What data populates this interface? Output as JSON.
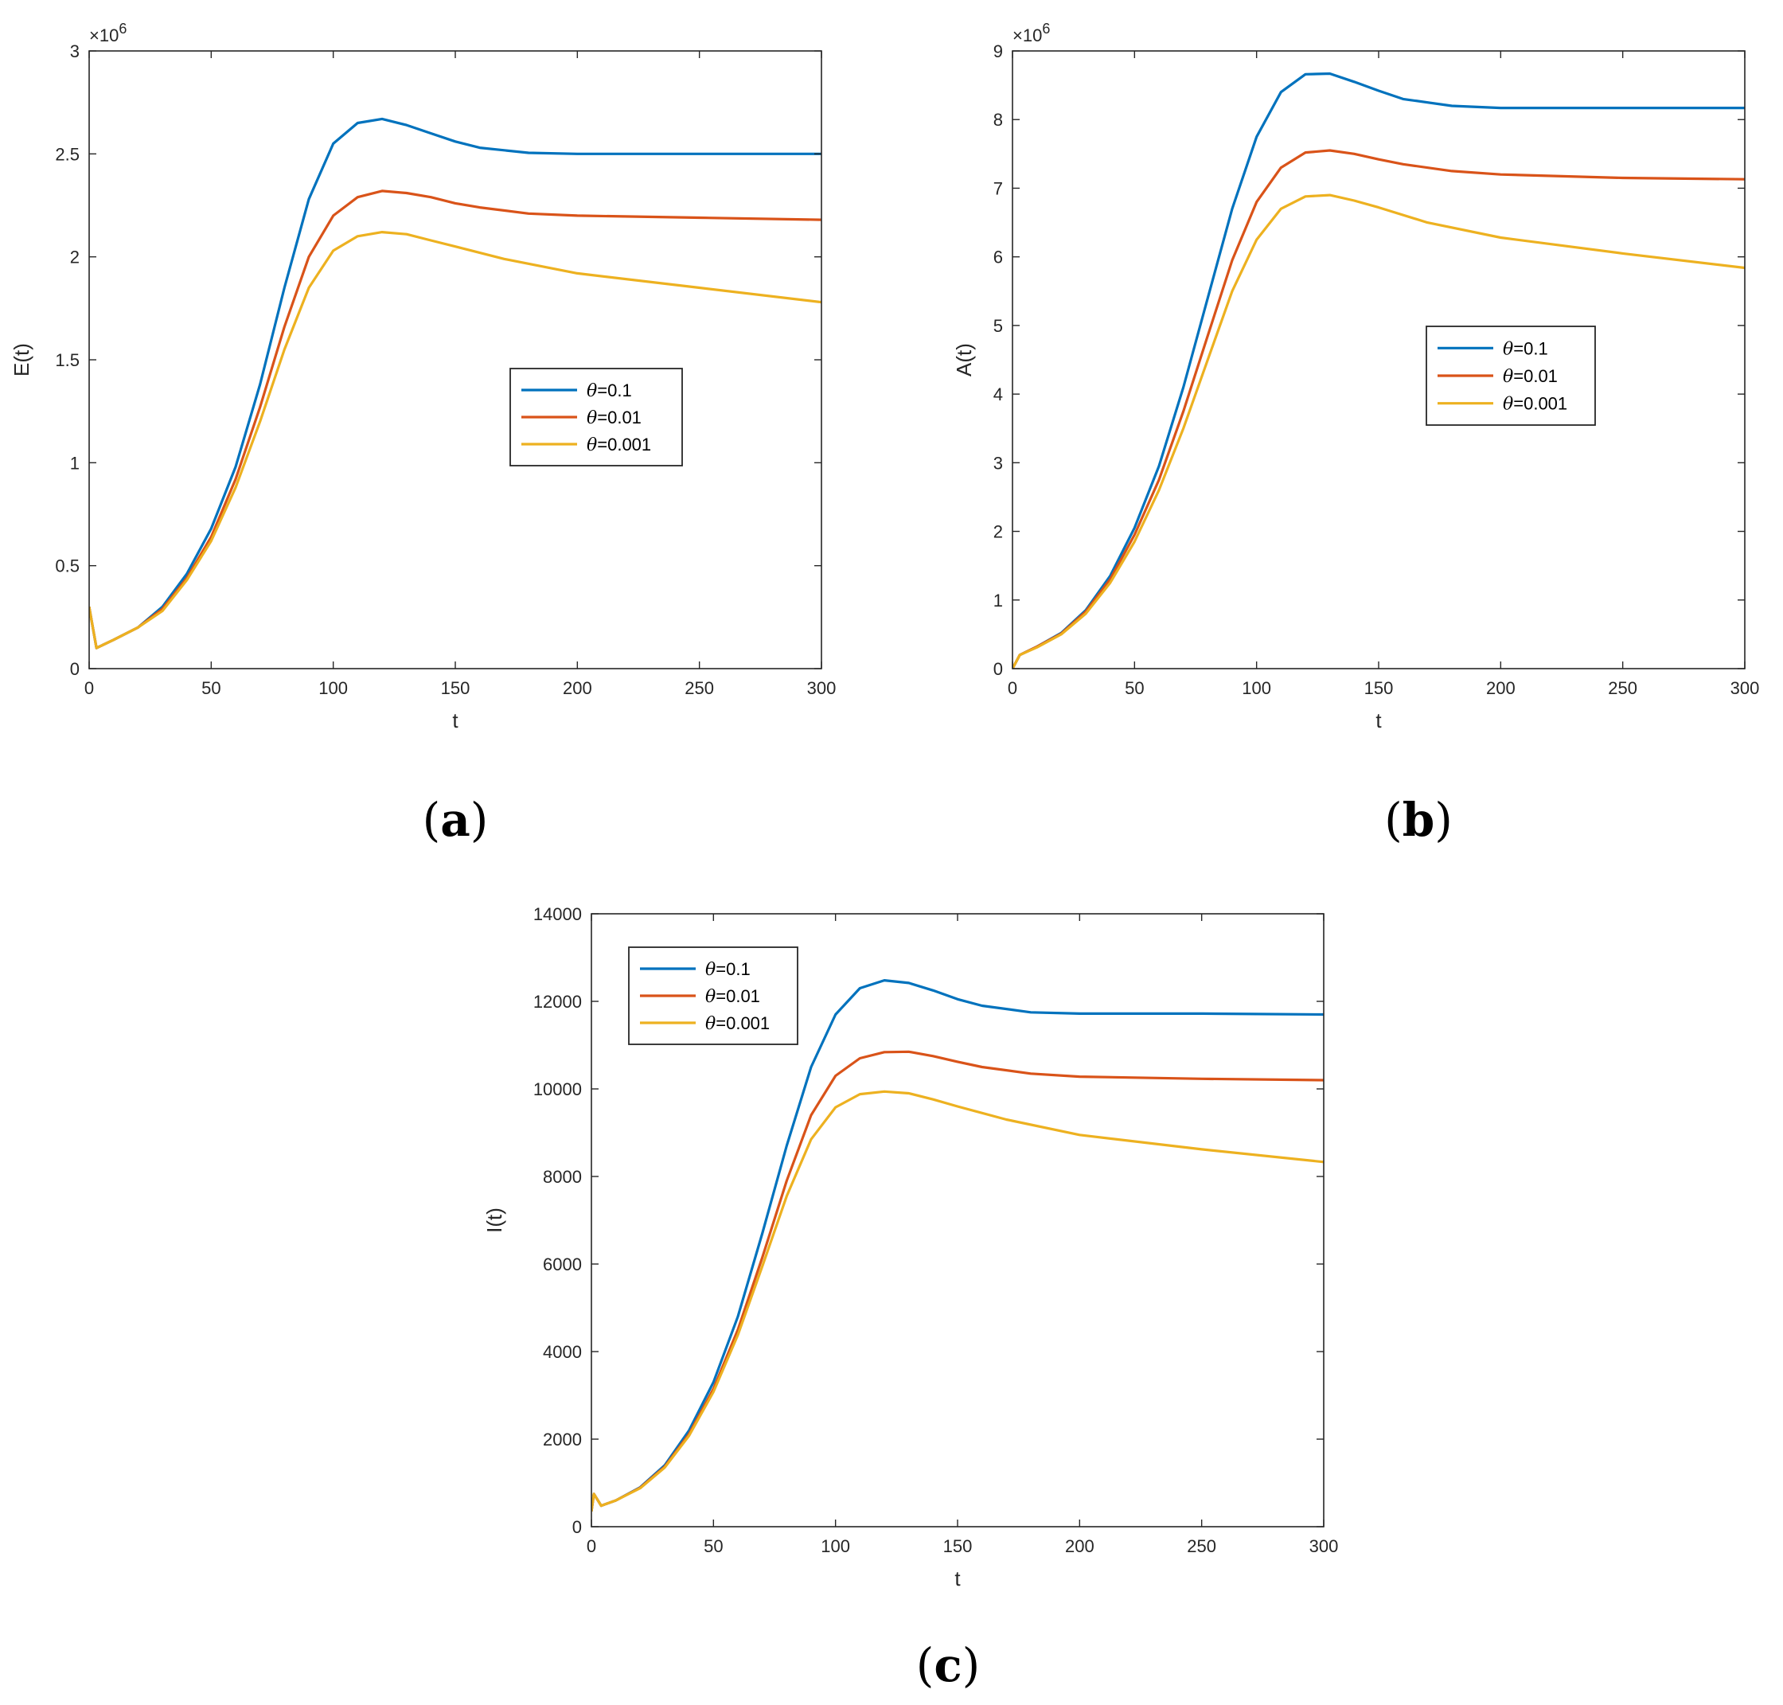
{
  "chart_data": [
    {
      "type": "line",
      "panel_label": {
        "open": "(",
        "letter": "a",
        "close": ")"
      },
      "xlabel": "t",
      "ylabel": "E(t)",
      "xlim": [
        0,
        300
      ],
      "ylim": [
        0,
        3
      ],
      "y_multiplier": "×10",
      "y_exponent": "6",
      "xticks": [
        0,
        50,
        100,
        150,
        200,
        250,
        300
      ],
      "xtick_labels": [
        "0",
        "50",
        "100",
        "150",
        "200",
        "250",
        "300"
      ],
      "yticks": [
        0,
        0.5,
        1,
        1.5,
        2,
        2.5,
        3
      ],
      "ytick_labels": [
        "0",
        "0.5",
        "1",
        "1.5",
        "2",
        "2.5",
        "3"
      ],
      "legend_position": "center-right",
      "series": [
        {
          "name": "θ=0.1",
          "symbol": "θ",
          "value_text": "=0.1",
          "color": "#0072BD",
          "points": [
            [
              0,
              0.3
            ],
            [
              3,
              0.1
            ],
            [
              10,
              0.14
            ],
            [
              20,
              0.2
            ],
            [
              30,
              0.3
            ],
            [
              40,
              0.46
            ],
            [
              50,
              0.68
            ],
            [
              60,
              0.98
            ],
            [
              70,
              1.38
            ],
            [
              80,
              1.85
            ],
            [
              90,
              2.28
            ],
            [
              100,
              2.55
            ],
            [
              110,
              2.65
            ],
            [
              120,
              2.67
            ],
            [
              130,
              2.64
            ],
            [
              140,
              2.6
            ],
            [
              150,
              2.56
            ],
            [
              160,
              2.53
            ],
            [
              180,
              2.505
            ],
            [
              200,
              2.5
            ],
            [
              250,
              2.5
            ],
            [
              300,
              2.5
            ]
          ]
        },
        {
          "name": "θ=0.01",
          "symbol": "θ",
          "value_text": "=0.01",
          "color": "#D95319",
          "points": [
            [
              0,
              0.3
            ],
            [
              3,
              0.1
            ],
            [
              10,
              0.14
            ],
            [
              20,
              0.2
            ],
            [
              30,
              0.29
            ],
            [
              40,
              0.44
            ],
            [
              50,
              0.64
            ],
            [
              60,
              0.92
            ],
            [
              70,
              1.27
            ],
            [
              80,
              1.66
            ],
            [
              90,
              2.0
            ],
            [
              100,
              2.2
            ],
            [
              110,
              2.29
            ],
            [
              120,
              2.32
            ],
            [
              130,
              2.31
            ],
            [
              140,
              2.29
            ],
            [
              150,
              2.26
            ],
            [
              160,
              2.24
            ],
            [
              180,
              2.21
            ],
            [
              200,
              2.2
            ],
            [
              250,
              2.19
            ],
            [
              300,
              2.18
            ]
          ]
        },
        {
          "name": "θ=0.001",
          "symbol": "θ",
          "value_text": "=0.001",
          "color": "#EDB120",
          "points": [
            [
              0,
              0.3
            ],
            [
              3,
              0.1
            ],
            [
              10,
              0.14
            ],
            [
              20,
              0.2
            ],
            [
              30,
              0.28
            ],
            [
              40,
              0.43
            ],
            [
              50,
              0.62
            ],
            [
              60,
              0.88
            ],
            [
              70,
              1.2
            ],
            [
              80,
              1.55
            ],
            [
              90,
              1.85
            ],
            [
              100,
              2.03
            ],
            [
              110,
              2.1
            ],
            [
              120,
              2.12
            ],
            [
              130,
              2.11
            ],
            [
              140,
              2.08
            ],
            [
              150,
              2.05
            ],
            [
              170,
              1.99
            ],
            [
              200,
              1.92
            ],
            [
              250,
              1.85
            ],
            [
              300,
              1.78
            ]
          ]
        }
      ]
    },
    {
      "type": "line",
      "panel_label": {
        "open": "(",
        "letter": "b",
        "close": ")"
      },
      "xlabel": "t",
      "ylabel": "A(t)",
      "xlim": [
        0,
        300
      ],
      "ylim": [
        0,
        9
      ],
      "y_multiplier": "×10",
      "y_exponent": "6",
      "xticks": [
        0,
        50,
        100,
        150,
        200,
        250,
        300
      ],
      "xtick_labels": [
        "0",
        "50",
        "100",
        "150",
        "200",
        "250",
        "300"
      ],
      "yticks": [
        0,
        1,
        2,
        3,
        4,
        5,
        6,
        7,
        8,
        9
      ],
      "ytick_labels": [
        "0",
        "1",
        "2",
        "3",
        "4",
        "5",
        "6",
        "7",
        "8",
        "9"
      ],
      "legend_position": "center-right",
      "series": [
        {
          "name": "θ=0.1",
          "symbol": "θ",
          "value_text": "=0.1",
          "color": "#0072BD",
          "points": [
            [
              0,
              0
            ],
            [
              3,
              0.2
            ],
            [
              10,
              0.32
            ],
            [
              20,
              0.52
            ],
            [
              30,
              0.85
            ],
            [
              40,
              1.35
            ],
            [
              50,
              2.05
            ],
            [
              60,
              2.95
            ],
            [
              70,
              4.1
            ],
            [
              80,
              5.4
            ],
            [
              90,
              6.7
            ],
            [
              100,
              7.75
            ],
            [
              110,
              8.4
            ],
            [
              120,
              8.66
            ],
            [
              130,
              8.67
            ],
            [
              140,
              8.55
            ],
            [
              150,
              8.42
            ],
            [
              160,
              8.3
            ],
            [
              180,
              8.2
            ],
            [
              200,
              8.17
            ],
            [
              250,
              8.17
            ],
            [
              300,
              8.17
            ]
          ]
        },
        {
          "name": "θ=0.01",
          "symbol": "θ",
          "value_text": "=0.01",
          "color": "#D95319",
          "points": [
            [
              0,
              0
            ],
            [
              3,
              0.2
            ],
            [
              10,
              0.32
            ],
            [
              20,
              0.51
            ],
            [
              30,
              0.83
            ],
            [
              40,
              1.3
            ],
            [
              50,
              1.95
            ],
            [
              60,
              2.75
            ],
            [
              70,
              3.75
            ],
            [
              80,
              4.85
            ],
            [
              90,
              5.95
            ],
            [
              100,
              6.8
            ],
            [
              110,
              7.3
            ],
            [
              120,
              7.52
            ],
            [
              130,
              7.55
            ],
            [
              140,
              7.5
            ],
            [
              150,
              7.42
            ],
            [
              160,
              7.35
            ],
            [
              180,
              7.25
            ],
            [
              200,
              7.2
            ],
            [
              250,
              7.15
            ],
            [
              300,
              7.13
            ]
          ]
        },
        {
          "name": "θ=0.001",
          "symbol": "θ",
          "value_text": "=0.001",
          "color": "#EDB120",
          "points": [
            [
              0,
              0
            ],
            [
              3,
              0.2
            ],
            [
              10,
              0.31
            ],
            [
              20,
              0.5
            ],
            [
              30,
              0.8
            ],
            [
              40,
              1.25
            ],
            [
              50,
              1.85
            ],
            [
              60,
              2.6
            ],
            [
              70,
              3.5
            ],
            [
              80,
              4.5
            ],
            [
              90,
              5.5
            ],
            [
              100,
              6.25
            ],
            [
              110,
              6.7
            ],
            [
              120,
              6.88
            ],
            [
              130,
              6.9
            ],
            [
              140,
              6.82
            ],
            [
              150,
              6.72
            ],
            [
              170,
              6.5
            ],
            [
              200,
              6.28
            ],
            [
              250,
              6.05
            ],
            [
              300,
              5.84
            ]
          ]
        }
      ]
    },
    {
      "type": "line",
      "panel_label": {
        "open": "(",
        "letter": "c",
        "close": ")"
      },
      "xlabel": "t",
      "ylabel": "I(t)",
      "xlim": [
        0,
        300
      ],
      "ylim": [
        0,
        14000
      ],
      "y_multiplier": "",
      "y_exponent": "",
      "xticks": [
        0,
        50,
        100,
        150,
        200,
        250,
        300
      ],
      "xtick_labels": [
        "0",
        "50",
        "100",
        "150",
        "200",
        "250",
        "300"
      ],
      "yticks": [
        0,
        2000,
        4000,
        6000,
        8000,
        10000,
        12000,
        14000
      ],
      "ytick_labels": [
        "0",
        "2000",
        "4000",
        "6000",
        "8000",
        "10000",
        "12000",
        "14000"
      ],
      "legend_position": "top-left",
      "series": [
        {
          "name": "θ=0.1",
          "symbol": "θ",
          "value_text": "=0.1",
          "color": "#0072BD",
          "points": [
            [
              0,
              350
            ],
            [
              1,
              750
            ],
            [
              4,
              480
            ],
            [
              10,
              600
            ],
            [
              20,
              900
            ],
            [
              30,
              1400
            ],
            [
              40,
              2200
            ],
            [
              50,
              3300
            ],
            [
              60,
              4800
            ],
            [
              70,
              6700
            ],
            [
              80,
              8700
            ],
            [
              90,
              10500
            ],
            [
              100,
              11700
            ],
            [
              110,
              12300
            ],
            [
              120,
              12480
            ],
            [
              130,
              12420
            ],
            [
              140,
              12250
            ],
            [
              150,
              12050
            ],
            [
              160,
              11900
            ],
            [
              180,
              11750
            ],
            [
              200,
              11720
            ],
            [
              250,
              11720
            ],
            [
              300,
              11700
            ]
          ]
        },
        {
          "name": "θ=0.01",
          "symbol": "θ",
          "value_text": "=0.01",
          "color": "#D95319",
          "points": [
            [
              0,
              350
            ],
            [
              1,
              750
            ],
            [
              4,
              480
            ],
            [
              10,
              600
            ],
            [
              20,
              890
            ],
            [
              30,
              1370
            ],
            [
              40,
              2120
            ],
            [
              50,
              3150
            ],
            [
              60,
              4500
            ],
            [
              70,
              6150
            ],
            [
              80,
              7900
            ],
            [
              90,
              9400
            ],
            [
              100,
              10300
            ],
            [
              110,
              10700
            ],
            [
              120,
              10840
            ],
            [
              130,
              10850
            ],
            [
              140,
              10750
            ],
            [
              150,
              10620
            ],
            [
              160,
              10500
            ],
            [
              180,
              10350
            ],
            [
              200,
              10280
            ],
            [
              250,
              10230
            ],
            [
              300,
              10200
            ]
          ]
        },
        {
          "name": "θ=0.001",
          "symbol": "θ",
          "value_text": "=0.001",
          "color": "#EDB120",
          "points": [
            [
              0,
              350
            ],
            [
              1,
              750
            ],
            [
              4,
              480
            ],
            [
              10,
              600
            ],
            [
              20,
              880
            ],
            [
              30,
              1350
            ],
            [
              40,
              2080
            ],
            [
              50,
              3080
            ],
            [
              60,
              4380
            ],
            [
              70,
              5950
            ],
            [
              80,
              7550
            ],
            [
              90,
              8850
            ],
            [
              100,
              9580
            ],
            [
              110,
              9880
            ],
            [
              120,
              9940
            ],
            [
              130,
              9900
            ],
            [
              140,
              9760
            ],
            [
              150,
              9600
            ],
            [
              170,
              9300
            ],
            [
              200,
              8950
            ],
            [
              250,
              8620
            ],
            [
              300,
              8330
            ]
          ]
        }
      ]
    }
  ]
}
